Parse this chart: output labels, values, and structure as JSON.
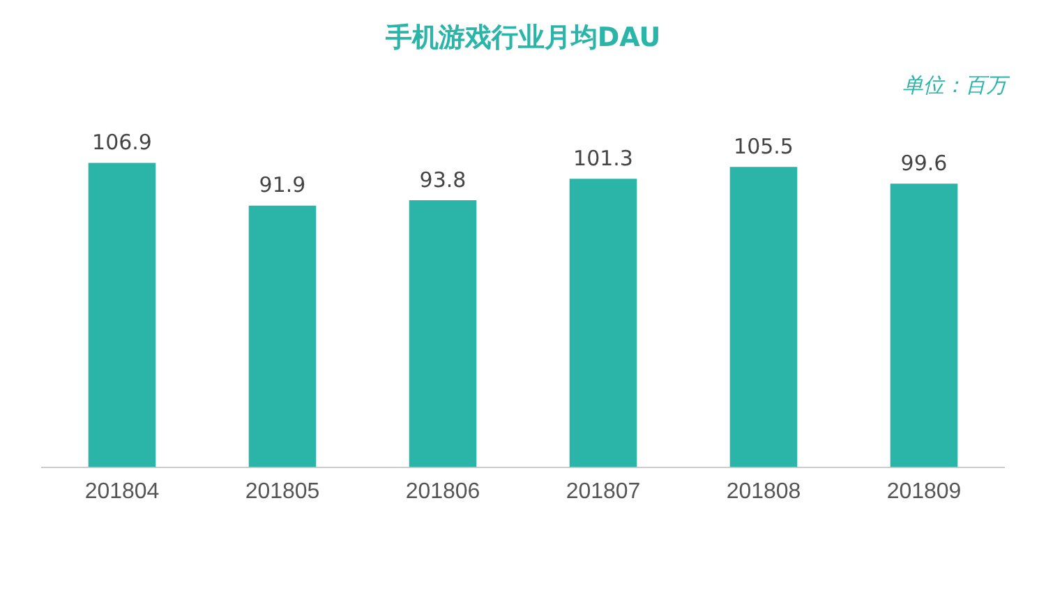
{
  "chart_data": {
    "type": "bar",
    "title": "手机游戏行业月均DAU",
    "annotations": [
      "单位：百万"
    ],
    "categories": [
      "201804",
      "201805",
      "201806",
      "201807",
      "201808",
      "201809"
    ],
    "values": [
      106.9,
      91.9,
      93.8,
      101.3,
      105.5,
      99.6
    ],
    "color": "#2ab5a8",
    "data_labels": true,
    "grid": false,
    "legend": false
  }
}
